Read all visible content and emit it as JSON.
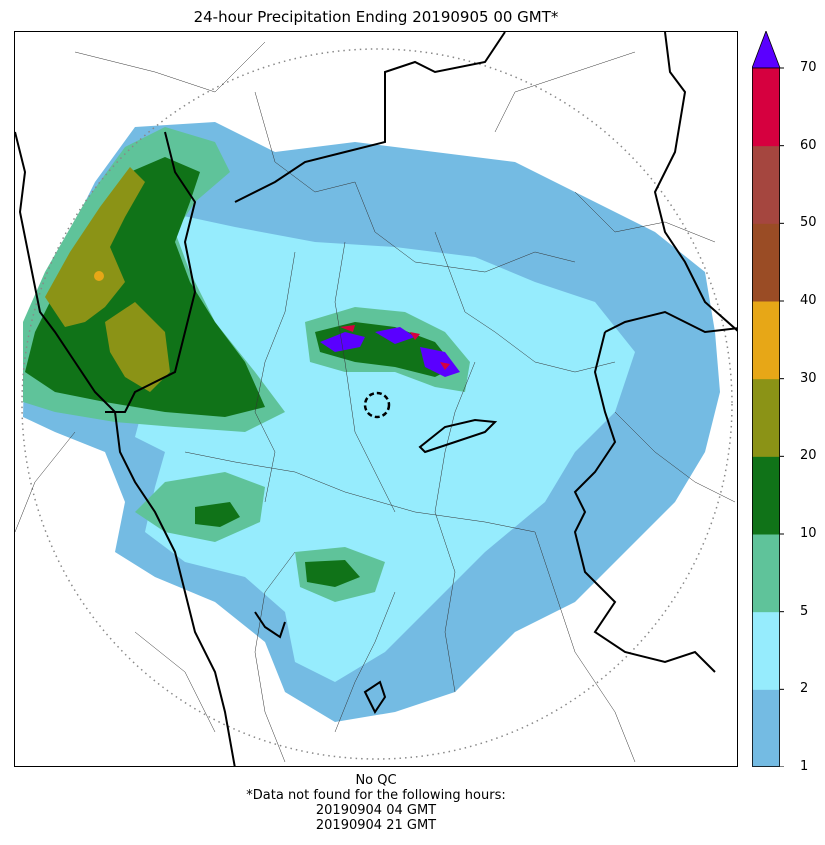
{
  "title": "24-hour Precipitation Ending 20190905 00 GMT*",
  "colorbar": {
    "ticks": [
      "1",
      "2",
      "5",
      "10",
      "20",
      "30",
      "40",
      "50",
      "60",
      "70"
    ],
    "colors": [
      "#74bbe3",
      "#96ecfd",
      "#5fc39a",
      "#107318",
      "#8b9316",
      "#e7a717",
      "#9a4c25",
      "#a5463f",
      "#d6003f"
    ],
    "extend_color": "#5a00ff"
  },
  "notes": {
    "qc": "No QC",
    "missing_header": "*Data not found for the following hours:",
    "missing_hours": [
      "20190904 04 GMT",
      "20190904 21 GMT"
    ]
  }
}
